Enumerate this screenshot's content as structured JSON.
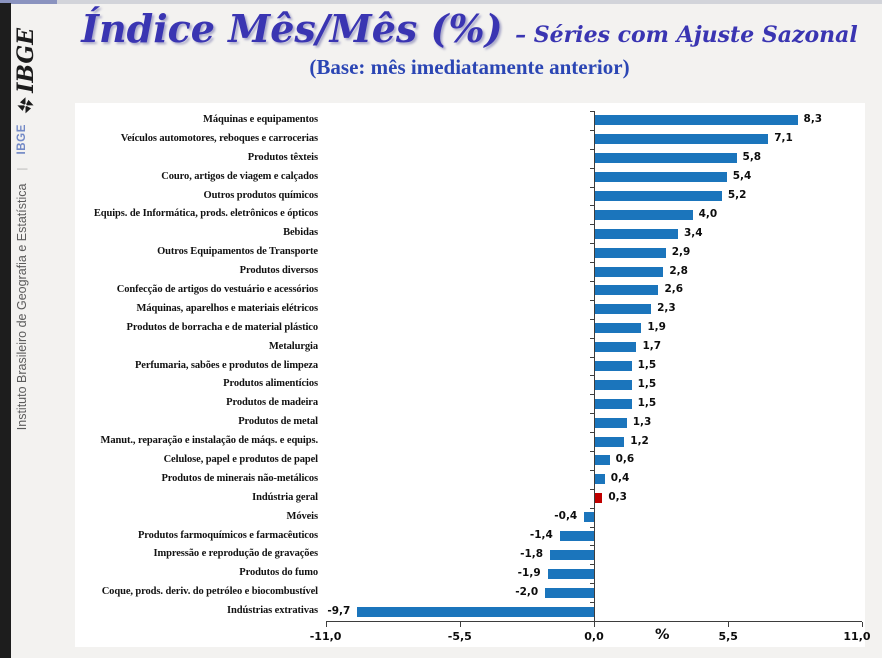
{
  "page": {
    "sidebar": {
      "logo_text": "IBGE",
      "site_brand": "IBGE",
      "site_separator": "|",
      "institution": "Instituto Brasileiro de Geografia e Estatística"
    },
    "header": {
      "title": "Índice Mês/Mês (%)",
      "subtitle": "– Séries com Ajuste Sazonal",
      "base_note": "(Base: mês imediatamente anterior)"
    }
  },
  "chart_data": {
    "type": "bar",
    "orientation": "horizontal",
    "title": "Índice Mês/Mês (%) – Séries com Ajuste Sazonal (Base: mês imediatamente anterior)",
    "unit_label": "%",
    "xlim": [
      -11.0,
      11.0
    ],
    "grid": false,
    "bar_color": "#1b75bc",
    "highlight_color": "#c00000",
    "highlight_category": "Indústria geral",
    "categories": [
      "Máquinas e equipamentos",
      "Veículos automotores, reboques e carrocerias",
      "Produtos têxteis",
      "Couro, artigos de viagem e calçados",
      "Outros produtos químicos",
      "Equips. de Informática, prods. eletrônicos e ópticos",
      "Bebidas",
      "Outros Equipamentos de Transporte",
      "Produtos diversos",
      "Confecção de artigos do vestuário e acessórios",
      "Máquinas, aparelhos e materiais elétricos",
      "Produtos de borracha e de material plástico",
      "Metalurgia",
      "Perfumaria, sabões e produtos de limpeza",
      "Produtos alimentícios",
      "Produtos de madeira",
      "Produtos de metal",
      "Manut., reparação e instalação de máqs. e equips.",
      "Celulose, papel e produtos de papel",
      "Produtos de minerais não-metálicos",
      "Indústria geral",
      "Móveis",
      "Produtos farmoquímicos e farmacêuticos",
      "Impressão e reprodução de gravações",
      "Produtos do fumo",
      "Coque, prods. deriv. do petróleo e biocombustível",
      "Indústrias extrativas"
    ],
    "values": [
      8.3,
      7.1,
      5.8,
      5.4,
      5.2,
      4.0,
      3.4,
      2.9,
      2.8,
      2.6,
      2.3,
      1.9,
      1.7,
      1.5,
      1.5,
      1.5,
      1.3,
      1.2,
      0.6,
      0.4,
      0.3,
      -0.4,
      -1.4,
      -1.8,
      -1.9,
      -2.0,
      -9.7
    ],
    "value_labels": [
      "8,3",
      "7,1",
      "5,8",
      "5,4",
      "5,2",
      "4,0",
      "3,4",
      "2,9",
      "2,8",
      "2,6",
      "2,3",
      "1,9",
      "1,7",
      "1,5",
      "1,5",
      "1,5",
      "1,3",
      "1,2",
      "0,6",
      "0,4",
      "0,3",
      "-0,4",
      "-1,4",
      "-1,8",
      "-1,9",
      "-2,0",
      "-9,7"
    ],
    "x_ticks": [
      {
        "value": -11.0,
        "label": "-11,0"
      },
      {
        "value": -5.5,
        "label": "-5,5"
      },
      {
        "value": 0.0,
        "label": "0,0"
      },
      {
        "value": 5.5,
        "label": "5,5"
      },
      {
        "value": 11.0,
        "label": "11,0"
      }
    ]
  }
}
